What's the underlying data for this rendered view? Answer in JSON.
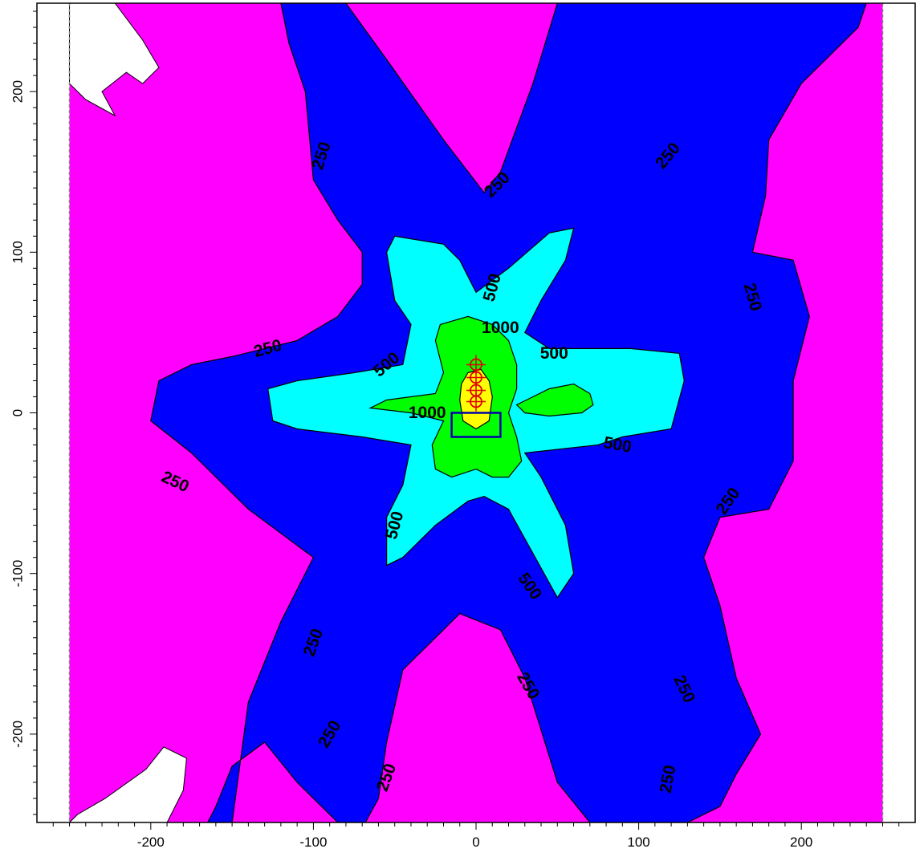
{
  "chart_data": {
    "type": "heatmap",
    "title": "",
    "xlabel": "",
    "ylabel": "",
    "xlim": [
      -270,
      270
    ],
    "ylim": [
      -255,
      255
    ],
    "x_ticks": [
      -200,
      -100,
      0,
      100,
      200
    ],
    "x_tick_labels": [
      "-200",
      "-100",
      "0",
      "100",
      "200"
    ],
    "y_ticks": [
      -200,
      -100,
      0,
      100,
      200
    ],
    "y_tick_labels": [
      "-200",
      "-100",
      "0",
      "100",
      "200"
    ],
    "grid": false,
    "legend": "none",
    "grid_boundary": {
      "xmin": -250,
      "xmax": 250
    },
    "contour_levels": [
      250,
      500,
      1000
    ],
    "fill_colors": {
      "below_250": "#ff00ff",
      "250_to_500": "#0000ff",
      "500_to_1000": "#00ffff",
      "1000_to_max": "#00ff00",
      "peak": "#ffff00",
      "outside": "#ffffff"
    },
    "contour_labels": [
      {
        "text": "250",
        "x": -95,
        "y": 160,
        "angle": -72
      },
      {
        "text": "250",
        "x": 13,
        "y": 142,
        "angle": -45
      },
      {
        "text": "250",
        "x": 118,
        "y": 160,
        "angle": -50
      },
      {
        "text": "250",
        "x": 170,
        "y": 72,
        "angle": 75
      },
      {
        "text": "250",
        "x": -128,
        "y": 40,
        "angle": -15
      },
      {
        "text": "250",
        "x": -185,
        "y": -43,
        "angle": 25
      },
      {
        "text": "250",
        "x": 155,
        "y": -55,
        "angle": -55
      },
      {
        "text": "250",
        "x": -100,
        "y": -143,
        "angle": -70
      },
      {
        "text": "250",
        "x": 32,
        "y": -170,
        "angle": 60
      },
      {
        "text": "250",
        "x": 128,
        "y": -172,
        "angle": 65
      },
      {
        "text": "250",
        "x": -90,
        "y": -200,
        "angle": -60
      },
      {
        "text": "250",
        "x": -55,
        "y": -227,
        "angle": -70
      },
      {
        "text": "250",
        "x": 118,
        "y": -228,
        "angle": -80
      },
      {
        "text": "500",
        "x": 10,
        "y": 78,
        "angle": -75
      },
      {
        "text": "500",
        "x": -55,
        "y": 30,
        "angle": -40
      },
      {
        "text": "500",
        "x": 48,
        "y": 37,
        "angle": 0
      },
      {
        "text": "500",
        "x": 87,
        "y": -20,
        "angle": 10
      },
      {
        "text": "500",
        "x": -50,
        "y": -70,
        "angle": -75
      },
      {
        "text": "500",
        "x": 33,
        "y": -108,
        "angle": 55
      },
      {
        "text": "1000",
        "x": 15,
        "y": 53,
        "angle": 0
      },
      {
        "text": "1000",
        "x": -30,
        "y": 0,
        "angle": 0
      }
    ],
    "sources": [
      {
        "x": 0,
        "y": 30
      },
      {
        "x": 0,
        "y": 22
      },
      {
        "x": 0,
        "y": 14
      },
      {
        "x": 0,
        "y": 7
      }
    ],
    "source_color": "#e00000",
    "building": {
      "x": [
        -15,
        15
      ],
      "y": [
        -15,
        0
      ],
      "color": "#0000aa"
    }
  }
}
